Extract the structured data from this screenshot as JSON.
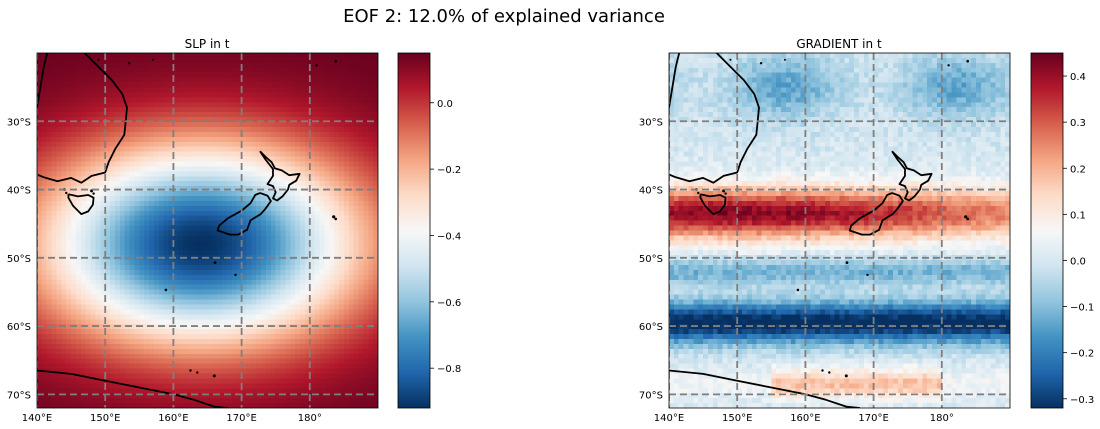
{
  "figure": {
    "title": "EOF 2: 12.0% of explained variance"
  },
  "chart_data": [
    {
      "type": "heatmap",
      "title": "SLP in t",
      "xlabel": "",
      "ylabel": "",
      "x_ticks": [
        {
          "value": 140,
          "label": "140°E"
        },
        {
          "value": 150,
          "label": "150°E"
        },
        {
          "value": 160,
          "label": "160°E"
        },
        {
          "value": 170,
          "label": "170°E"
        },
        {
          "value": 180,
          "label": "180°"
        }
      ],
      "y_ticks": [
        {
          "value": -30,
          "label": "30°S"
        },
        {
          "value": -40,
          "label": "40°S"
        },
        {
          "value": -50,
          "label": "50°S"
        },
        {
          "value": -60,
          "label": "60°S"
        },
        {
          "value": -70,
          "label": "70°S"
        }
      ],
      "xlim": [
        140,
        190
      ],
      "ylim": [
        -72,
        -20
      ],
      "grid": true,
      "colormap": "RdBu_r",
      "colorbar": {
        "range": [
          -0.92,
          0.15
        ],
        "ticks": [
          {
            "value": 0.0,
            "label": "0.0"
          },
          {
            "value": -0.2,
            "label": "−0.2"
          },
          {
            "value": -0.4,
            "label": "−0.4"
          },
          {
            "value": -0.6,
            "label": "−0.6"
          },
          {
            "value": -0.8,
            "label": "−0.8"
          }
        ]
      },
      "pattern": "Broad negative (blue) anomaly centred near 164°E, 48°S with minimum about −0.92; positive (red) values near 0.1 toward the north and the southern edge."
    },
    {
      "type": "heatmap",
      "title": "GRADIENT in t",
      "xlabel": "",
      "ylabel": "",
      "x_ticks": [
        {
          "value": 140,
          "label": "140°E"
        },
        {
          "value": 150,
          "label": "150°E"
        },
        {
          "value": 160,
          "label": "160°E"
        },
        {
          "value": 170,
          "label": "170°E"
        },
        {
          "value": 180,
          "label": "180°"
        }
      ],
      "y_ticks": [
        {
          "value": -30,
          "label": "30°S"
        },
        {
          "value": -40,
          "label": "40°S"
        },
        {
          "value": -50,
          "label": "50°S"
        },
        {
          "value": -60,
          "label": "60°S"
        },
        {
          "value": -70,
          "label": "70°S"
        }
      ],
      "xlim": [
        140,
        190
      ],
      "ylim": [
        -72,
        -20
      ],
      "grid": true,
      "colormap": "RdBu_r",
      "colorbar": {
        "range": [
          -0.32,
          0.45
        ],
        "ticks": [
          {
            "value": 0.4,
            "label": "0.4"
          },
          {
            "value": 0.3,
            "label": "0.3"
          },
          {
            "value": 0.2,
            "label": "0.2"
          },
          {
            "value": 0.1,
            "label": "0.1"
          },
          {
            "value": 0.0,
            "label": "0.0"
          },
          {
            "value": -0.1,
            "label": "−0.1"
          },
          {
            "value": -0.2,
            "label": "−0.2"
          },
          {
            "value": -0.3,
            "label": "−0.3"
          }
        ]
      },
      "pattern": "Zonal bands: weak negative in the far north, strong positive band near 40–46°S (max about 0.45), strong negative band near 57–62°S (min about −0.32), weak positive near 68°S."
    }
  ],
  "map": {
    "coastline_color": "#000000",
    "grid_color": "#7f7f7f"
  }
}
